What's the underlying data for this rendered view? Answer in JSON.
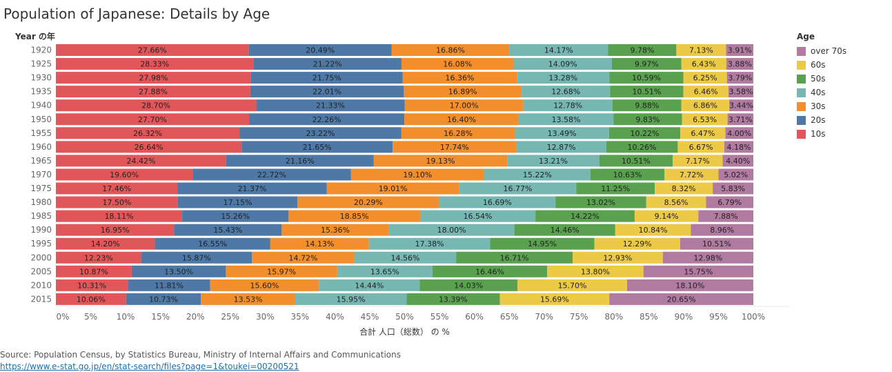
{
  "title": "Population of Japanese: Details by Age",
  "source_text": "Source: Population Census, by Statistics Bureau, Ministry of Internal Affairs and Communications",
  "source_link": "https://www.e-stat.go.jp/en/stat-search/files?page=1&toukei=00200521",
  "chart_data": {
    "type": "bar",
    "orientation": "horizontal",
    "stacked": true,
    "normalized": true,
    "ylabel": "Year の年",
    "xlabel": "合計 人口（総数） の %",
    "xlim": [
      0,
      100
    ],
    "x_ticks": [
      "0%",
      "5%",
      "10%",
      "15%",
      "20%",
      "25%",
      "30%",
      "35%",
      "40%",
      "45%",
      "50%",
      "55%",
      "60%",
      "65%",
      "70%",
      "75%",
      "80%",
      "85%",
      "90%",
      "95%",
      "100%"
    ],
    "categories": [
      "1920",
      "1925",
      "1930",
      "1935",
      "1940",
      "1950",
      "1955",
      "1960",
      "1965",
      "1970",
      "1975",
      "1980",
      "1985",
      "1990",
      "1995",
      "2000",
      "2005",
      "2010",
      "2015"
    ],
    "legend_title": "Age",
    "legend_position": "right",
    "legend_order": [
      "over 70s",
      "60s",
      "50s",
      "40s",
      "30s",
      "20s",
      "10s"
    ],
    "series": [
      {
        "name": "10s",
        "color": "#e15759",
        "values": [
          27.66,
          28.33,
          27.98,
          27.88,
          28.7,
          27.7,
          26.32,
          26.64,
          24.42,
          19.6,
          17.46,
          17.5,
          18.11,
          16.95,
          14.2,
          12.23,
          10.87,
          10.31,
          10.06
        ]
      },
      {
        "name": "20s",
        "color": "#4e79a7",
        "values": [
          20.49,
          21.22,
          21.75,
          22.01,
          21.33,
          22.26,
          23.22,
          21.65,
          21.16,
          22.72,
          21.37,
          17.15,
          15.26,
          15.43,
          16.55,
          15.87,
          13.5,
          11.81,
          10.73
        ]
      },
      {
        "name": "30s",
        "color": "#f28e2b",
        "values": [
          16.86,
          16.08,
          16.36,
          16.89,
          17.0,
          16.4,
          16.28,
          17.74,
          19.13,
          19.1,
          19.01,
          20.29,
          18.85,
          15.36,
          14.13,
          14.72,
          15.97,
          15.6,
          13.53
        ]
      },
      {
        "name": "40s",
        "color": "#76b7b2",
        "values": [
          14.17,
          14.09,
          13.28,
          12.68,
          12.78,
          13.58,
          13.49,
          12.87,
          13.21,
          15.22,
          16.77,
          16.69,
          16.54,
          18.0,
          17.38,
          14.56,
          13.65,
          14.44,
          15.95
        ]
      },
      {
        "name": "50s",
        "color": "#59a14f",
        "values": [
          9.78,
          9.97,
          10.59,
          10.51,
          9.88,
          9.83,
          10.22,
          10.26,
          10.51,
          10.63,
          11.25,
          13.02,
          14.22,
          14.46,
          14.95,
          16.71,
          16.46,
          14.03,
          13.39
        ]
      },
      {
        "name": "60s",
        "color": "#edc948",
        "values": [
          7.13,
          6.43,
          6.25,
          6.46,
          6.86,
          6.53,
          6.47,
          6.67,
          7.17,
          7.72,
          8.32,
          8.56,
          9.14,
          10.84,
          12.29,
          12.93,
          13.8,
          15.7,
          15.69
        ]
      },
      {
        "name": "over 70s",
        "color": "#b07aa1",
        "values": [
          3.91,
          3.88,
          3.79,
          3.58,
          3.44,
          3.71,
          4.0,
          4.18,
          4.4,
          5.02,
          5.83,
          6.79,
          7.88,
          8.96,
          10.51,
          12.98,
          15.75,
          18.1,
          20.65
        ]
      }
    ]
  }
}
